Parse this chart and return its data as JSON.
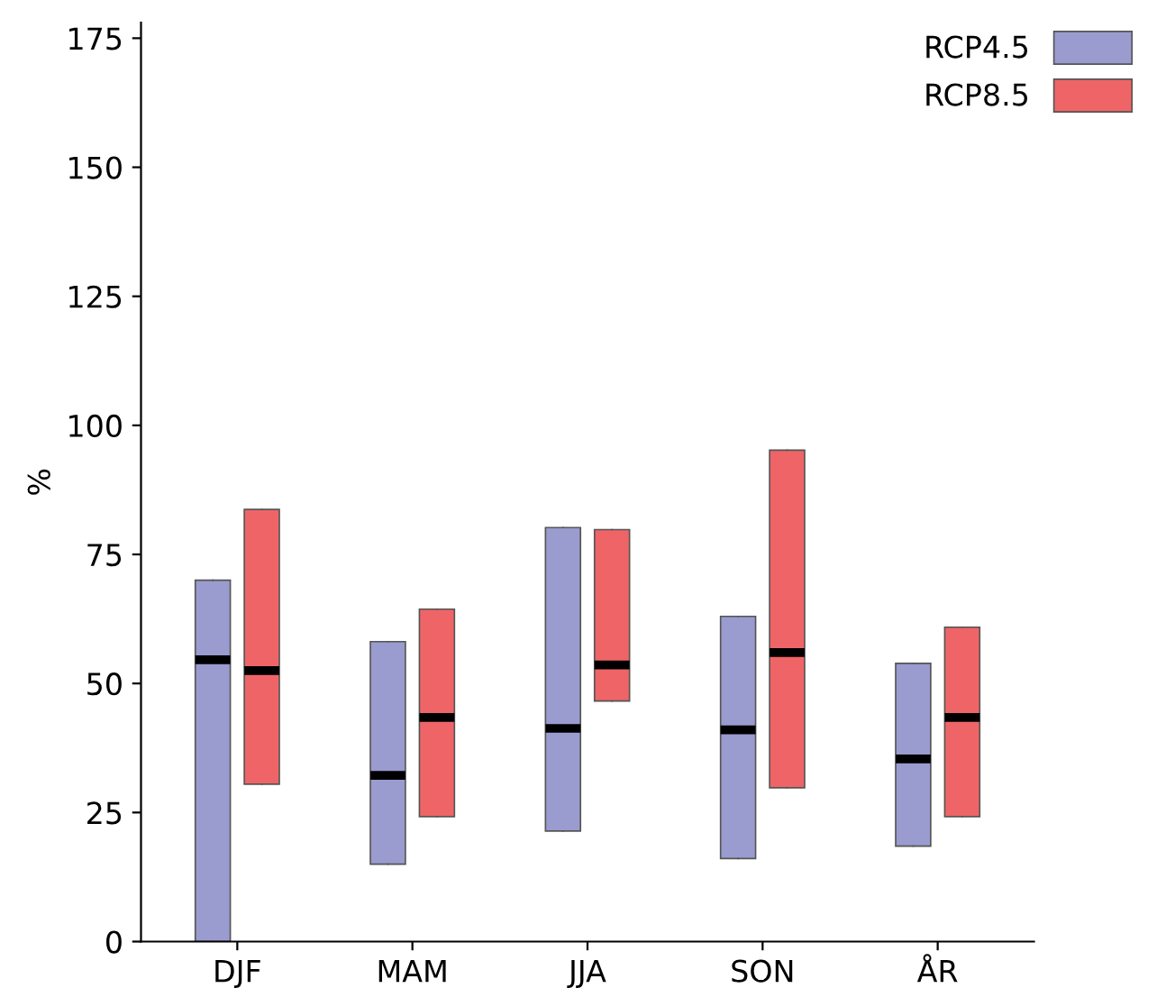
{
  "chart_data": {
    "type": "box",
    "ylabel": "%",
    "categories": [
      "DJF",
      "MAM",
      "JJA",
      "SON",
      "ÅR"
    ],
    "ylim": [
      0,
      178
    ],
    "yticks": [
      0,
      25,
      50,
      75,
      100,
      125,
      150,
      175
    ],
    "legend": "top right",
    "grid": false,
    "series": [
      {
        "name": "RCP4.5",
        "color": "#9a9bcf",
        "boxes": [
          {
            "low": 0,
            "q1": 0,
            "median": 54.6,
            "q3": 70,
            "high": 70
          },
          {
            "low": 15,
            "q1": 15,
            "median": 32.2,
            "q3": 58.1,
            "high": 58.1
          },
          {
            "low": 21.4,
            "q1": 21.4,
            "median": 41.3,
            "q3": 80.2,
            "high": 80.2
          },
          {
            "low": 16.1,
            "q1": 16.1,
            "median": 41,
            "q3": 63,
            "high": 63
          },
          {
            "low": 18.5,
            "q1": 18.5,
            "median": 35.4,
            "q3": 53.9,
            "high": 53.9
          }
        ]
      },
      {
        "name": "RCP8.5",
        "color": "#ef6567",
        "boxes": [
          {
            "low": 30.5,
            "q1": 30.5,
            "median": 52.5,
            "q3": 83.7,
            "high": 83.7
          },
          {
            "low": 24.2,
            "q1": 24.2,
            "median": 43.4,
            "q3": 64.4,
            "high": 64.4
          },
          {
            "low": 46.6,
            "q1": 46.6,
            "median": 53.6,
            "q3": 79.8,
            "high": 79.8
          },
          {
            "low": 29.8,
            "q1": 29.8,
            "median": 56,
            "q3": 95.2,
            "high": 95.2
          },
          {
            "low": 24.2,
            "q1": 24.2,
            "median": 43.4,
            "q3": 60.9,
            "high": 60.9
          }
        ]
      }
    ]
  }
}
